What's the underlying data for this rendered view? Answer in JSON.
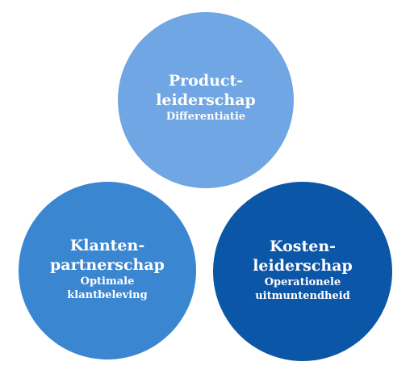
{
  "circles": [
    {
      "title": "Product-\nleiderschap",
      "subtitle": "Differentiatie",
      "color": "#6fa6e3"
    },
    {
      "title": "Klanten-\npartnerschap",
      "subtitle": "Optimale\nklantbeleving",
      "color": "#3b86d1"
    },
    {
      "title": "Kosten-\nleiderschap",
      "subtitle": "Operationele\nuitmuntendheid",
      "color": "#0c56a8"
    }
  ]
}
